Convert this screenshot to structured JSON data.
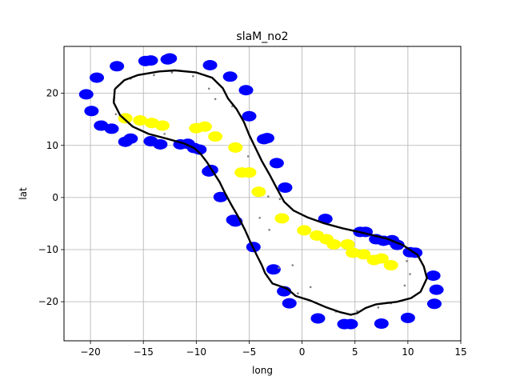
{
  "chart_data": {
    "type": "scatter",
    "title": "slaM_no2",
    "xlabel": "long",
    "ylabel": "lat",
    "xlim": [
      -22.5,
      15
    ],
    "ylim": [
      -27.5,
      29
    ],
    "xticks": [
      -20,
      -15,
      -10,
      -5,
      0,
      5,
      10,
      15
    ],
    "yticks": [
      -20,
      -10,
      0,
      10,
      20
    ],
    "xtick_labels": [
      "−20",
      "−15",
      "−10",
      "−5",
      "0",
      "5",
      "10",
      "15"
    ],
    "ytick_labels": [
      "−20",
      "−10",
      "0",
      "10",
      "20"
    ],
    "grid": true,
    "legend": "none",
    "series": [
      {
        "color": "#0000ff",
        "marker": "circle-large",
        "points": [
          [
            -20.4,
            19.8
          ],
          [
            -19.9,
            16.6
          ],
          [
            -19.4,
            23.0
          ],
          [
            -19.0,
            13.8
          ],
          [
            -18.0,
            13.2
          ],
          [
            -17.5,
            25.2
          ],
          [
            -16.7,
            10.7
          ],
          [
            -16.2,
            11.3
          ],
          [
            -14.8,
            26.2
          ],
          [
            -14.3,
            26.3
          ],
          [
            -14.3,
            10.8
          ],
          [
            -13.4,
            10.2
          ],
          [
            -12.7,
            26.5
          ],
          [
            -12.5,
            26.7
          ],
          [
            -11.5,
            10.2
          ],
          [
            -10.8,
            10.3
          ],
          [
            -10.2,
            9.5
          ],
          [
            -9.7,
            9.2
          ],
          [
            -8.7,
            25.4
          ],
          [
            -8.8,
            5.0
          ],
          [
            -8.6,
            5.3
          ],
          [
            -7.7,
            0.1
          ],
          [
            -6.8,
            23.2
          ],
          [
            -6.5,
            -4.3
          ],
          [
            -6.3,
            -4.6
          ],
          [
            -5.3,
            20.6
          ],
          [
            -5.0,
            15.6
          ],
          [
            -4.6,
            -9.5
          ],
          [
            -3.6,
            11.2
          ],
          [
            -3.3,
            11.4
          ],
          [
            -2.4,
            6.6
          ],
          [
            -2.7,
            -13.8
          ],
          [
            -1.6,
            1.9
          ],
          [
            -1.7,
            -18.0
          ],
          [
            -1.2,
            -20.3
          ],
          [
            1.5,
            -23.2
          ],
          [
            2.2,
            -4.1
          ],
          [
            4.0,
            -24.3
          ],
          [
            4.6,
            -24.3
          ],
          [
            5.5,
            -6.6
          ],
          [
            6.0,
            -6.6
          ],
          [
            7.0,
            -8.0
          ],
          [
            7.7,
            -8.3
          ],
          [
            8.5,
            -8.2
          ],
          [
            9.0,
            -9.1
          ],
          [
            10.2,
            -10.5
          ],
          [
            10.7,
            -10.6
          ],
          [
            7.5,
            -24.2
          ],
          [
            10.0,
            -23.1
          ],
          [
            12.4,
            -15.0
          ],
          [
            12.7,
            -17.7
          ],
          [
            12.5,
            -20.4
          ]
        ]
      },
      {
        "color": "#ffff00",
        "marker": "circle-large",
        "points": [
          [
            -16.7,
            15.2
          ],
          [
            -15.3,
            14.8
          ],
          [
            -14.2,
            14.3
          ],
          [
            -13.2,
            13.8
          ],
          [
            -10.0,
            13.3
          ],
          [
            -9.2,
            13.6
          ],
          [
            -8.2,
            11.7
          ],
          [
            -6.3,
            9.6
          ],
          [
            -5.7,
            4.8
          ],
          [
            -5.0,
            4.8
          ],
          [
            -4.1,
            1.1
          ],
          [
            -1.9,
            -4.0
          ],
          [
            0.2,
            -6.3
          ],
          [
            1.4,
            -7.3
          ],
          [
            2.3,
            -8.0
          ],
          [
            3.0,
            -9.0
          ],
          [
            4.3,
            -9.0
          ],
          [
            4.8,
            -10.6
          ],
          [
            5.8,
            -10.9
          ],
          [
            6.8,
            -12.0
          ],
          [
            7.5,
            -11.7
          ],
          [
            8.4,
            -13.0
          ]
        ]
      },
      {
        "color": "#808080",
        "marker": "dot-small",
        "points": [
          [
            -17.8,
            18.7
          ],
          [
            -17.4,
            21.4
          ],
          [
            -16.2,
            22.8
          ],
          [
            -14.0,
            23.5
          ],
          [
            -12.3,
            24.0
          ],
          [
            -10.3,
            23.3
          ],
          [
            -8.8,
            20.9
          ],
          [
            -8.2,
            18.9
          ],
          [
            -6.6,
            17.5
          ],
          [
            -5.1,
            7.9
          ],
          [
            -3.2,
            0.2
          ],
          [
            -2.1,
            -0.3
          ],
          [
            -4.0,
            -3.9
          ],
          [
            -3.1,
            -6.2
          ],
          [
            -2.2,
            -13.5
          ],
          [
            -0.9,
            -13.0
          ],
          [
            -0.4,
            -18.4
          ],
          [
            0.8,
            -17.2
          ],
          [
            3.2,
            -21.9
          ],
          [
            5.2,
            -21.8
          ],
          [
            7.2,
            -21.1
          ],
          [
            8.4,
            -20.3
          ],
          [
            9.7,
            -16.9
          ],
          [
            9.9,
            -12.2
          ],
          [
            10.2,
            -14.7
          ],
          [
            -17.6,
            16.0
          ],
          [
            -13.0,
            12.2
          ]
        ]
      }
    ],
    "path": {
      "color": "#000000",
      "points": [
        [
          -17.7,
          20.8
        ],
        [
          -16.8,
          22.5
        ],
        [
          -15.5,
          23.5
        ],
        [
          -13.5,
          24.2
        ],
        [
          -12.0,
          24.4
        ],
        [
          -10.0,
          24.0
        ],
        [
          -8.5,
          23.0
        ],
        [
          -7.5,
          21.0
        ],
        [
          -7.0,
          19.0
        ],
        [
          -6.2,
          17.0
        ],
        [
          -5.5,
          14.5
        ],
        [
          -5.0,
          12.0
        ],
        [
          -4.4,
          9.5
        ],
        [
          -3.8,
          7.0
        ],
        [
          -3.1,
          4.5
        ],
        [
          -2.4,
          1.8
        ],
        [
          -1.7,
          -0.8
        ],
        [
          -0.8,
          -2.5
        ],
        [
          0.5,
          -3.8
        ],
        [
          2.0,
          -4.9
        ],
        [
          3.8,
          -5.9
        ],
        [
          6.0,
          -6.9
        ],
        [
          8.0,
          -7.9
        ],
        [
          9.5,
          -9.1
        ],
        [
          10.9,
          -11.0
        ],
        [
          11.5,
          -13.2
        ],
        [
          11.8,
          -15.5
        ],
        [
          11.2,
          -18.1
        ],
        [
          10.3,
          -19.3
        ],
        [
          9.0,
          -20.0
        ],
        [
          7.0,
          -20.5
        ],
        [
          6.0,
          -21.2
        ],
        [
          5.2,
          -22.2
        ],
        [
          4.6,
          -22.5
        ],
        [
          3.6,
          -22.0
        ],
        [
          2.2,
          -21.0
        ],
        [
          0.8,
          -19.8
        ],
        [
          -0.6,
          -18.9
        ],
        [
          -1.4,
          -17.5
        ],
        [
          -2.8,
          -16.5
        ],
        [
          -3.5,
          -14.5
        ],
        [
          -3.8,
          -13.0
        ],
        [
          -4.3,
          -11.0
        ],
        [
          -4.9,
          -8.5
        ],
        [
          -5.4,
          -6.2
        ],
        [
          -6.0,
          -3.8
        ],
        [
          -6.6,
          -1.7
        ],
        [
          -7.2,
          0.5
        ],
        [
          -7.8,
          3.0
        ],
        [
          -8.5,
          5.2
        ],
        [
          -9.0,
          6.8
        ],
        [
          -9.6,
          8.4
        ],
        [
          -10.2,
          9.5
        ],
        [
          -11.2,
          10.4
        ],
        [
          -12.8,
          11.3
        ],
        [
          -14.5,
          12.2
        ],
        [
          -16.0,
          13.6
        ],
        [
          -17.2,
          15.8
        ],
        [
          -17.8,
          18.2
        ],
        [
          -17.7,
          20.8
        ]
      ]
    }
  }
}
